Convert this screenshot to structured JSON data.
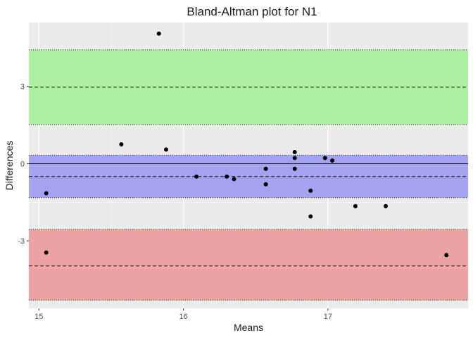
{
  "chart_data": {
    "type": "scatter",
    "title": "Bland-Altman plot for N1",
    "xlabel": "Means",
    "ylabel": "Differences",
    "xlim": [
      14.93,
      17.97
    ],
    "ylim": [
      -5.62,
      5.48
    ],
    "x_ticks": [
      15,
      16,
      17
    ],
    "y_ticks": [
      -3,
      0,
      3
    ],
    "grid": true,
    "legend": "none",
    "zero_line": 0,
    "bands": [
      {
        "name": "upper-loa",
        "ymin": 1.52,
        "ymax": 4.42,
        "center": 2.97,
        "color": "#adeea3"
      },
      {
        "name": "bias",
        "ymin": -1.32,
        "ymax": 0.33,
        "center": -0.5,
        "color": "#a3a3ef"
      },
      {
        "name": "lower-loa",
        "ymin": -5.3,
        "ymax": -2.55,
        "center": -3.97,
        "color": "#eea3a3"
      }
    ],
    "points": [
      {
        "x": 15.05,
        "y": -1.15
      },
      {
        "x": 15.05,
        "y": -3.45
      },
      {
        "x": 15.57,
        "y": 0.75
      },
      {
        "x": 15.83,
        "y": 5.05
      },
      {
        "x": 15.88,
        "y": 0.55
      },
      {
        "x": 16.09,
        "y": -0.5
      },
      {
        "x": 16.3,
        "y": -0.5
      },
      {
        "x": 16.35,
        "y": -0.6
      },
      {
        "x": 16.57,
        "y": -0.2
      },
      {
        "x": 16.57,
        "y": -0.8
      },
      {
        "x": 16.77,
        "y": 0.45
      },
      {
        "x": 16.77,
        "y": 0.22
      },
      {
        "x": 16.77,
        "y": -0.2
      },
      {
        "x": 16.88,
        "y": -1.05
      },
      {
        "x": 16.88,
        "y": -2.05
      },
      {
        "x": 16.98,
        "y": 0.22
      },
      {
        "x": 17.03,
        "y": 0.12
      },
      {
        "x": 17.19,
        "y": -1.65
      },
      {
        "x": 17.4,
        "y": -1.65
      },
      {
        "x": 17.82,
        "y": -3.55
      }
    ]
  }
}
